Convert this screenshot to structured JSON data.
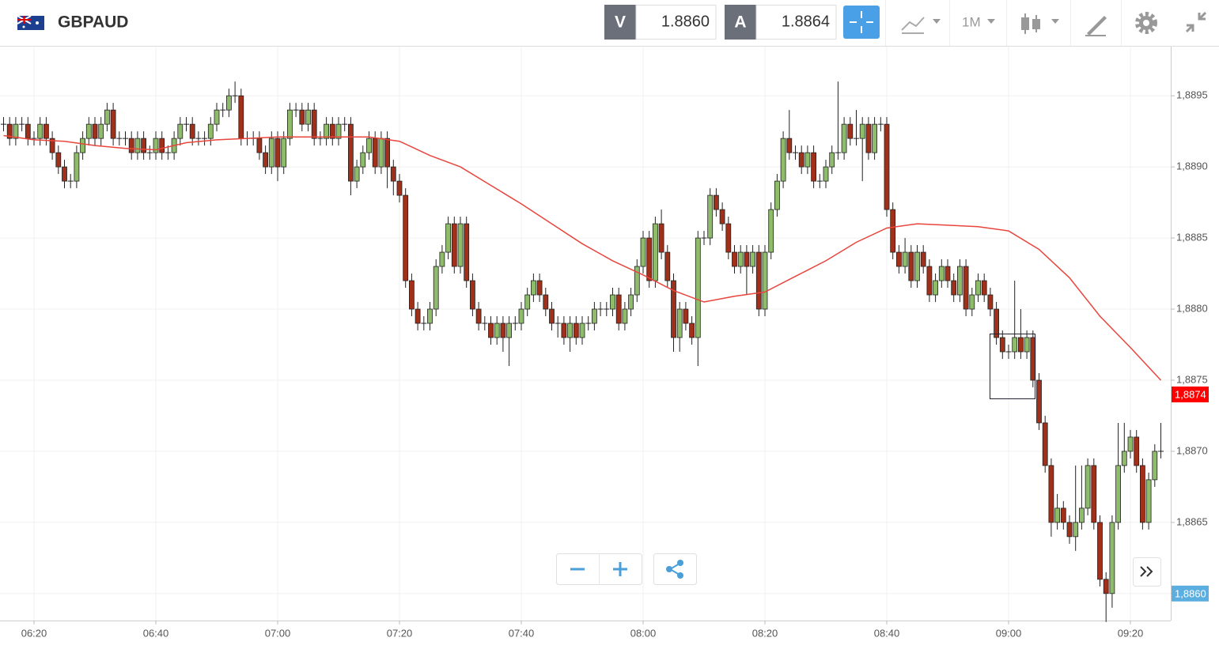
{
  "toolbar": {
    "symbol": "GBPAUD",
    "bid_label": "V",
    "bid": "1.8860",
    "ask_label": "A",
    "ask": "1.8864",
    "timeframe": "1M"
  },
  "chart_data": {
    "type": "candlestick",
    "x": [
      "06:15",
      "06:16",
      "06:17",
      "06:18",
      "06:19",
      "06:20",
      "06:21",
      "06:22",
      "06:23",
      "06:24",
      "06:25",
      "06:26",
      "06:27",
      "06:28",
      "06:29",
      "06:30",
      "06:31",
      "06:32",
      "06:33",
      "06:34",
      "06:35",
      "06:36",
      "06:37",
      "06:38",
      "06:39",
      "06:40",
      "06:41",
      "06:42",
      "06:43",
      "06:44",
      "06:45",
      "06:46",
      "06:47",
      "06:48",
      "06:49",
      "06:50",
      "06:51",
      "06:52",
      "06:53",
      "06:54",
      "06:55",
      "06:56",
      "06:57",
      "06:58",
      "06:59",
      "07:00",
      "07:01",
      "07:02",
      "07:03",
      "07:04",
      "07:05",
      "07:06",
      "07:07",
      "07:08",
      "07:09",
      "07:10",
      "07:11",
      "07:12",
      "07:13",
      "07:14",
      "07:15",
      "07:16",
      "07:17",
      "07:18",
      "07:19",
      "07:20",
      "07:21",
      "07:22",
      "07:23",
      "07:24",
      "07:25",
      "07:26",
      "07:27",
      "07:28",
      "07:29",
      "07:30",
      "07:31",
      "07:32",
      "07:33",
      "07:34",
      "07:35",
      "07:36",
      "07:37",
      "07:38",
      "07:39",
      "07:40",
      "07:41",
      "07:42",
      "07:43",
      "07:44",
      "07:45",
      "07:46",
      "07:47",
      "07:48",
      "07:49",
      "07:50",
      "07:51",
      "07:52",
      "07:53",
      "07:54",
      "07:55",
      "07:56",
      "07:57",
      "07:58",
      "07:59",
      "08:00",
      "08:01",
      "08:02",
      "08:03",
      "08:04",
      "08:05",
      "08:06",
      "08:07",
      "08:08",
      "08:09",
      "08:10",
      "08:11",
      "08:12",
      "08:13",
      "08:14",
      "08:15",
      "08:16",
      "08:17",
      "08:18",
      "08:19",
      "08:20",
      "08:21",
      "08:22",
      "08:23",
      "08:24",
      "08:25",
      "08:26",
      "08:27",
      "08:28",
      "08:29",
      "08:30",
      "08:31",
      "08:32",
      "08:33",
      "08:34",
      "08:35",
      "08:36",
      "08:37",
      "08:38",
      "08:39",
      "08:40",
      "08:41",
      "08:42",
      "08:43",
      "08:44",
      "08:45",
      "08:46",
      "08:47",
      "08:48",
      "08:49",
      "08:50",
      "08:51",
      "08:52",
      "08:53",
      "08:54",
      "08:55",
      "08:56",
      "08:57",
      "08:58",
      "08:59",
      "09:00",
      "09:01",
      "09:02",
      "09:03",
      "09:04",
      "09:05",
      "09:06",
      "09:07",
      "09:08",
      "09:09",
      "09:10",
      "09:11",
      "09:12",
      "09:13",
      "09:14",
      "09:15",
      "09:16",
      "09:17",
      "09:18",
      "09:19",
      "09:20",
      "09:21",
      "09:22",
      "09:23",
      "09:24",
      "09:25"
    ],
    "open": [
      1.8893,
      1.8893,
      1.8892,
      1.8893,
      1.8893,
      1.8892,
      1.8892,
      1.8893,
      1.8892,
      1.8891,
      1.889,
      1.8889,
      1.8889,
      1.8891,
      1.8892,
      1.8893,
      1.8892,
      1.8893,
      1.8894,
      1.8892,
      1.8892,
      1.8892,
      1.8891,
      1.8892,
      1.8891,
      1.8891,
      1.8892,
      1.8891,
      1.8891,
      1.8892,
      1.8893,
      1.8893,
      1.8892,
      1.8892,
      1.8892,
      1.8893,
      1.8894,
      1.8894,
      1.8895,
      1.8895,
      1.8892,
      1.8892,
      1.8892,
      1.8891,
      1.889,
      1.8892,
      1.889,
      1.8892,
      1.8894,
      1.8894,
      1.8893,
      1.8894,
      1.8892,
      1.8892,
      1.8893,
      1.8892,
      1.8893,
      1.8893,
      1.8889,
      1.889,
      1.8891,
      1.8892,
      1.889,
      1.8892,
      1.889,
      1.8889,
      1.8888,
      1.8882,
      1.888,
      1.8879,
      1.8879,
      1.888,
      1.8883,
      1.8884,
      1.8886,
      1.8883,
      1.8886,
      1.8882,
      1.888,
      1.8879,
      1.8879,
      1.8878,
      1.8879,
      1.8878,
      1.8879,
      1.8879,
      1.888,
      1.8881,
      1.8882,
      1.8881,
      1.888,
      1.8879,
      1.8879,
      1.8878,
      1.8879,
      1.8878,
      1.8879,
      1.8879,
      1.888,
      1.888,
      1.888,
      1.8881,
      1.8879,
      1.888,
      1.8881,
      1.8883,
      1.8885,
      1.8882,
      1.8886,
      1.8884,
      1.8882,
      1.8878,
      1.888,
      1.8879,
      1.8878,
      1.8885,
      1.8885,
      1.8888,
      1.8887,
      1.8886,
      1.8884,
      1.8883,
      1.8884,
      1.8883,
      1.8884,
      1.888,
      1.8884,
      1.8887,
      1.8889,
      1.8892,
      1.8891,
      1.8891,
      1.889,
      1.8891,
      1.8889,
      1.8889,
      1.889,
      1.8891,
      1.8891,
      1.8893,
      1.8892,
      1.8892,
      1.8893,
      1.8891,
      1.8893,
      1.8893,
      1.8887,
      1.8884,
      1.8883,
      1.8884,
      1.8882,
      1.8884,
      1.8883,
      1.8881,
      1.8882,
      1.8883,
      1.8882,
      1.8881,
      1.8883,
      1.888,
      1.8881,
      1.8882,
      1.8881,
      1.888,
      1.8878,
      1.8877,
      1.8877,
      1.8878,
      1.8877,
      1.8878,
      1.8875,
      1.8872,
      1.8869,
      1.8865,
      1.8866,
      1.8865,
      1.8864,
      1.8865,
      1.8866,
      1.8869,
      1.8865,
      1.8861,
      1.886,
      1.8865,
      1.8869,
      1.887,
      1.8871,
      1.8869,
      1.8865,
      1.8868,
      1.887
    ],
    "high": [
      1.88935,
      1.88935,
      1.88935,
      1.88935,
      1.88935,
      1.88925,
      1.88935,
      1.88935,
      1.88925,
      1.88915,
      1.88905,
      1.88895,
      1.88915,
      1.88925,
      1.88935,
      1.88935,
      1.88935,
      1.88945,
      1.88945,
      1.88925,
      1.88925,
      1.88925,
      1.88925,
      1.88925,
      1.88915,
      1.88925,
      1.88925,
      1.88915,
      1.88925,
      1.88935,
      1.88935,
      1.88935,
      1.88925,
      1.88925,
      1.88935,
      1.88945,
      1.88945,
      1.88955,
      1.8896,
      1.88955,
      1.88925,
      1.88925,
      1.88925,
      1.88915,
      1.88925,
      1.88925,
      1.88925,
      1.88945,
      1.88945,
      1.88945,
      1.88945,
      1.88945,
      1.88925,
      1.88935,
      1.88935,
      1.88935,
      1.88935,
      1.88935,
      1.88905,
      1.88915,
      1.88925,
      1.88925,
      1.88925,
      1.88925,
      1.88905,
      1.88895,
      1.88885,
      1.88825,
      1.88805,
      1.88795,
      1.88805,
      1.88835,
      1.88845,
      1.88865,
      1.88865,
      1.88865,
      1.88865,
      1.88825,
      1.88805,
      1.88795,
      1.88795,
      1.88795,
      1.88795,
      1.88795,
      1.88795,
      1.88805,
      1.88815,
      1.88825,
      1.88825,
      1.88815,
      1.88805,
      1.88795,
      1.88795,
      1.88795,
      1.88795,
      1.88795,
      1.88795,
      1.88805,
      1.88805,
      1.88805,
      1.88815,
      1.88815,
      1.88805,
      1.88815,
      1.88835,
      1.88855,
      1.88855,
      1.88865,
      1.8887,
      1.88845,
      1.88825,
      1.88805,
      1.88805,
      1.88795,
      1.88855,
      1.88855,
      1.88885,
      1.88885,
      1.88875,
      1.88865,
      1.88845,
      1.88845,
      1.88845,
      1.88845,
      1.88845,
      1.88845,
      1.88875,
      1.88895,
      1.88925,
      1.8894,
      1.88915,
      1.88915,
      1.88915,
      1.88915,
      1.88895,
      1.88905,
      1.88915,
      1.8896,
      1.88935,
      1.88935,
      1.8894,
      1.88935,
      1.88935,
      1.88935,
      1.88935,
      1.88935,
      1.88875,
      1.88845,
      1.8885,
      1.88845,
      1.88845,
      1.88845,
      1.88835,
      1.88825,
      1.88835,
      1.88835,
      1.88825,
      1.88835,
      1.88835,
      1.88815,
      1.88825,
      1.88825,
      1.88815,
      1.88805,
      1.88785,
      1.88775,
      1.8882,
      1.888,
      1.88785,
      1.88785,
      1.88755,
      1.88725,
      1.88695,
      1.8867,
      1.88665,
      1.88655,
      1.8869,
      1.8869,
      1.88695,
      1.88695,
      1.88655,
      1.88615,
      1.88655,
      1.8872,
      1.8872,
      1.88715,
      1.88715,
      1.88695,
      1.88685,
      1.88705,
      1.8872
    ],
    "low": [
      1.88925,
      1.88915,
      1.88915,
      1.88925,
      1.88915,
      1.88915,
      1.88915,
      1.88915,
      1.88905,
      1.88895,
      1.88885,
      1.88885,
      1.88885,
      1.88905,
      1.88915,
      1.88915,
      1.88915,
      1.88925,
      1.88915,
      1.88915,
      1.88915,
      1.88905,
      1.88905,
      1.88905,
      1.88905,
      1.88905,
      1.88905,
      1.88905,
      1.88905,
      1.88915,
      1.88925,
      1.88915,
      1.88915,
      1.88915,
      1.88915,
      1.88925,
      1.88935,
      1.88935,
      1.88945,
      1.88915,
      1.88915,
      1.88915,
      1.88905,
      1.88895,
      1.88895,
      1.8889,
      1.88895,
      1.88915,
      1.88935,
      1.88925,
      1.88925,
      1.88915,
      1.88915,
      1.88915,
      1.88915,
      1.88915,
      1.88925,
      1.8888,
      1.88885,
      1.88895,
      1.88905,
      1.88895,
      1.88895,
      1.88885,
      1.8888,
      1.88875,
      1.88815,
      1.88795,
      1.88785,
      1.88785,
      1.88785,
      1.88795,
      1.88825,
      1.88835,
      1.88825,
      1.88825,
      1.88815,
      1.88795,
      1.88785,
      1.88785,
      1.88775,
      1.88775,
      1.8877,
      1.8876,
      1.88785,
      1.88785,
      1.88795,
      1.88805,
      1.88805,
      1.88795,
      1.88785,
      1.8878,
      1.88775,
      1.8877,
      1.88775,
      1.88775,
      1.88785,
      1.88785,
      1.88795,
      1.88795,
      1.88795,
      1.88785,
      1.88785,
      1.88795,
      1.88805,
      1.88825,
      1.88815,
      1.88815,
      1.88835,
      1.88815,
      1.8877,
      1.8877,
      1.88785,
      1.88775,
      1.8876,
      1.88845,
      1.88845,
      1.88865,
      1.88855,
      1.88835,
      1.88825,
      1.88825,
      1.8881,
      1.88825,
      1.88795,
      1.88795,
      1.88835,
      1.88865,
      1.88885,
      1.88905,
      1.88905,
      1.88895,
      1.88895,
      1.88885,
      1.88885,
      1.88885,
      1.88895,
      1.88905,
      1.88905,
      1.88915,
      1.88915,
      1.8889,
      1.88905,
      1.88905,
      1.88925,
      1.88865,
      1.88835,
      1.88825,
      1.88825,
      1.88815,
      1.88815,
      1.88825,
      1.88805,
      1.88805,
      1.88815,
      1.88815,
      1.88805,
      1.88805,
      1.88795,
      1.88795,
      1.88805,
      1.88805,
      1.88795,
      1.88775,
      1.88765,
      1.88765,
      1.88765,
      1.88765,
      1.88765,
      1.88745,
      1.88715,
      1.88685,
      1.8864,
      1.88645,
      1.88645,
      1.88635,
      1.8863,
      1.88645,
      1.88655,
      1.88645,
      1.88605,
      1.8858,
      1.8859,
      1.88645,
      1.88685,
      1.88695,
      1.88685,
      1.88645,
      1.88645,
      1.88675,
      1.88695
    ],
    "close": [
      1.8893,
      1.8892,
      1.8893,
      1.8893,
      1.8892,
      1.8892,
      1.8893,
      1.8892,
      1.8891,
      1.889,
      1.8889,
      1.8889,
      1.8891,
      1.8892,
      1.8893,
      1.8892,
      1.8893,
      1.8894,
      1.8892,
      1.8892,
      1.8892,
      1.8891,
      1.8892,
      1.8891,
      1.8891,
      1.8892,
      1.8891,
      1.8891,
      1.8892,
      1.8893,
      1.8893,
      1.8892,
      1.8892,
      1.8892,
      1.8893,
      1.8894,
      1.8894,
      1.8895,
      1.8895,
      1.8892,
      1.8892,
      1.8892,
      1.8891,
      1.889,
      1.8892,
      1.889,
      1.8892,
      1.8894,
      1.8894,
      1.8893,
      1.8894,
      1.8892,
      1.8892,
      1.8893,
      1.8892,
      1.8893,
      1.8893,
      1.8889,
      1.889,
      1.8891,
      1.8892,
      1.889,
      1.8892,
      1.889,
      1.8889,
      1.8888,
      1.8882,
      1.888,
      1.8879,
      1.8879,
      1.888,
      1.8883,
      1.8884,
      1.8886,
      1.8883,
      1.8886,
      1.8882,
      1.888,
      1.8879,
      1.8879,
      1.8878,
      1.8879,
      1.8878,
      1.8879,
      1.8879,
      1.888,
      1.8881,
      1.8882,
      1.8881,
      1.888,
      1.8879,
      1.8879,
      1.8878,
      1.8879,
      1.8878,
      1.8879,
      1.8879,
      1.888,
      1.888,
      1.888,
      1.8881,
      1.8879,
      1.888,
      1.8881,
      1.8883,
      1.8885,
      1.8882,
      1.8886,
      1.8884,
      1.8882,
      1.8878,
      1.888,
      1.8879,
      1.8878,
      1.8885,
      1.8885,
      1.8888,
      1.8887,
      1.8886,
      1.8884,
      1.8883,
      1.8884,
      1.8883,
      1.8884,
      1.888,
      1.8884,
      1.8887,
      1.8889,
      1.8892,
      1.8891,
      1.8891,
      1.889,
      1.8891,
      1.8889,
      1.8889,
      1.889,
      1.8891,
      1.8891,
      1.8893,
      1.8892,
      1.8892,
      1.8893,
      1.8891,
      1.8893,
      1.8893,
      1.8887,
      1.8884,
      1.8883,
      1.8884,
      1.8882,
      1.8884,
      1.8883,
      1.8881,
      1.8882,
      1.8883,
      1.8882,
      1.8881,
      1.8883,
      1.888,
      1.8881,
      1.8882,
      1.8881,
      1.888,
      1.8878,
      1.8877,
      1.8877,
      1.8878,
      1.8877,
      1.8878,
      1.8875,
      1.8872,
      1.8869,
      1.8865,
      1.8866,
      1.8865,
      1.8864,
      1.8865,
      1.8866,
      1.8869,
      1.8865,
      1.8861,
      1.886,
      1.8865,
      1.8869,
      1.887,
      1.8871,
      1.8869,
      1.8865,
      1.8868,
      1.887,
      1.887
    ],
    "up_color": "#8fbc6b",
    "down_color": "#a0301a",
    "moving_average": {
      "color": "#e8453c",
      "x": [
        "06:15",
        "06:20",
        "06:25",
        "06:30",
        "06:35",
        "06:40",
        "06:45",
        "06:50",
        "06:55",
        "07:00",
        "07:05",
        "07:10",
        "07:15",
        "07:20",
        "07:25",
        "07:30",
        "07:35",
        "07:40",
        "07:45",
        "07:50",
        "07:55",
        "08:00",
        "08:05",
        "08:10",
        "08:15",
        "08:20",
        "08:25",
        "08:30",
        "08:35",
        "08:40",
        "08:45",
        "08:50",
        "08:55",
        "09:00",
        "09:05",
        "09:10",
        "09:15",
        "09:20",
        "09:25"
      ],
      "values": [
        1.88922,
        1.88919,
        1.88918,
        1.88915,
        1.88913,
        1.88912,
        1.88917,
        1.88919,
        1.8892,
        1.88921,
        1.88921,
        1.88921,
        1.88921,
        1.88918,
        1.88908,
        1.889,
        1.88887,
        1.88874,
        1.8886,
        1.88846,
        1.88834,
        1.88824,
        1.88813,
        1.88805,
        1.88809,
        1.88812,
        1.88823,
        1.88834,
        1.88847,
        1.88857,
        1.8886,
        1.88859,
        1.88858,
        1.88855,
        1.88842,
        1.88822,
        1.88795,
        1.88773,
        1.8875
      ]
    },
    "price_tags": [
      {
        "value": 1.8874,
        "label": "1,8874",
        "color": "#ff0000"
      },
      {
        "value": 1.886,
        "label": "1,8860",
        "color": "#5aaee0"
      }
    ],
    "ylim": [
      1.88581,
      1.88984
    ],
    "yticks": [
      {
        "value": 1.886,
        "label": "1,8860"
      },
      {
        "value": 1.8865,
        "label": "1,8865"
      },
      {
        "value": 1.887,
        "label": "1,8870"
      },
      {
        "value": 1.8875,
        "label": "1,8875"
      },
      {
        "value": 1.888,
        "label": "1,8880"
      },
      {
        "value": 1.8885,
        "label": "1,8885"
      },
      {
        "value": 1.889,
        "label": "1,8890"
      },
      {
        "value": 1.8895,
        "label": "1,8895"
      }
    ],
    "xticks": [
      "06:20",
      "06:40",
      "07:00",
      "07:20",
      "07:40",
      "08:00",
      "08:20",
      "08:40",
      "09:00",
      "09:20"
    ],
    "grid": true
  }
}
